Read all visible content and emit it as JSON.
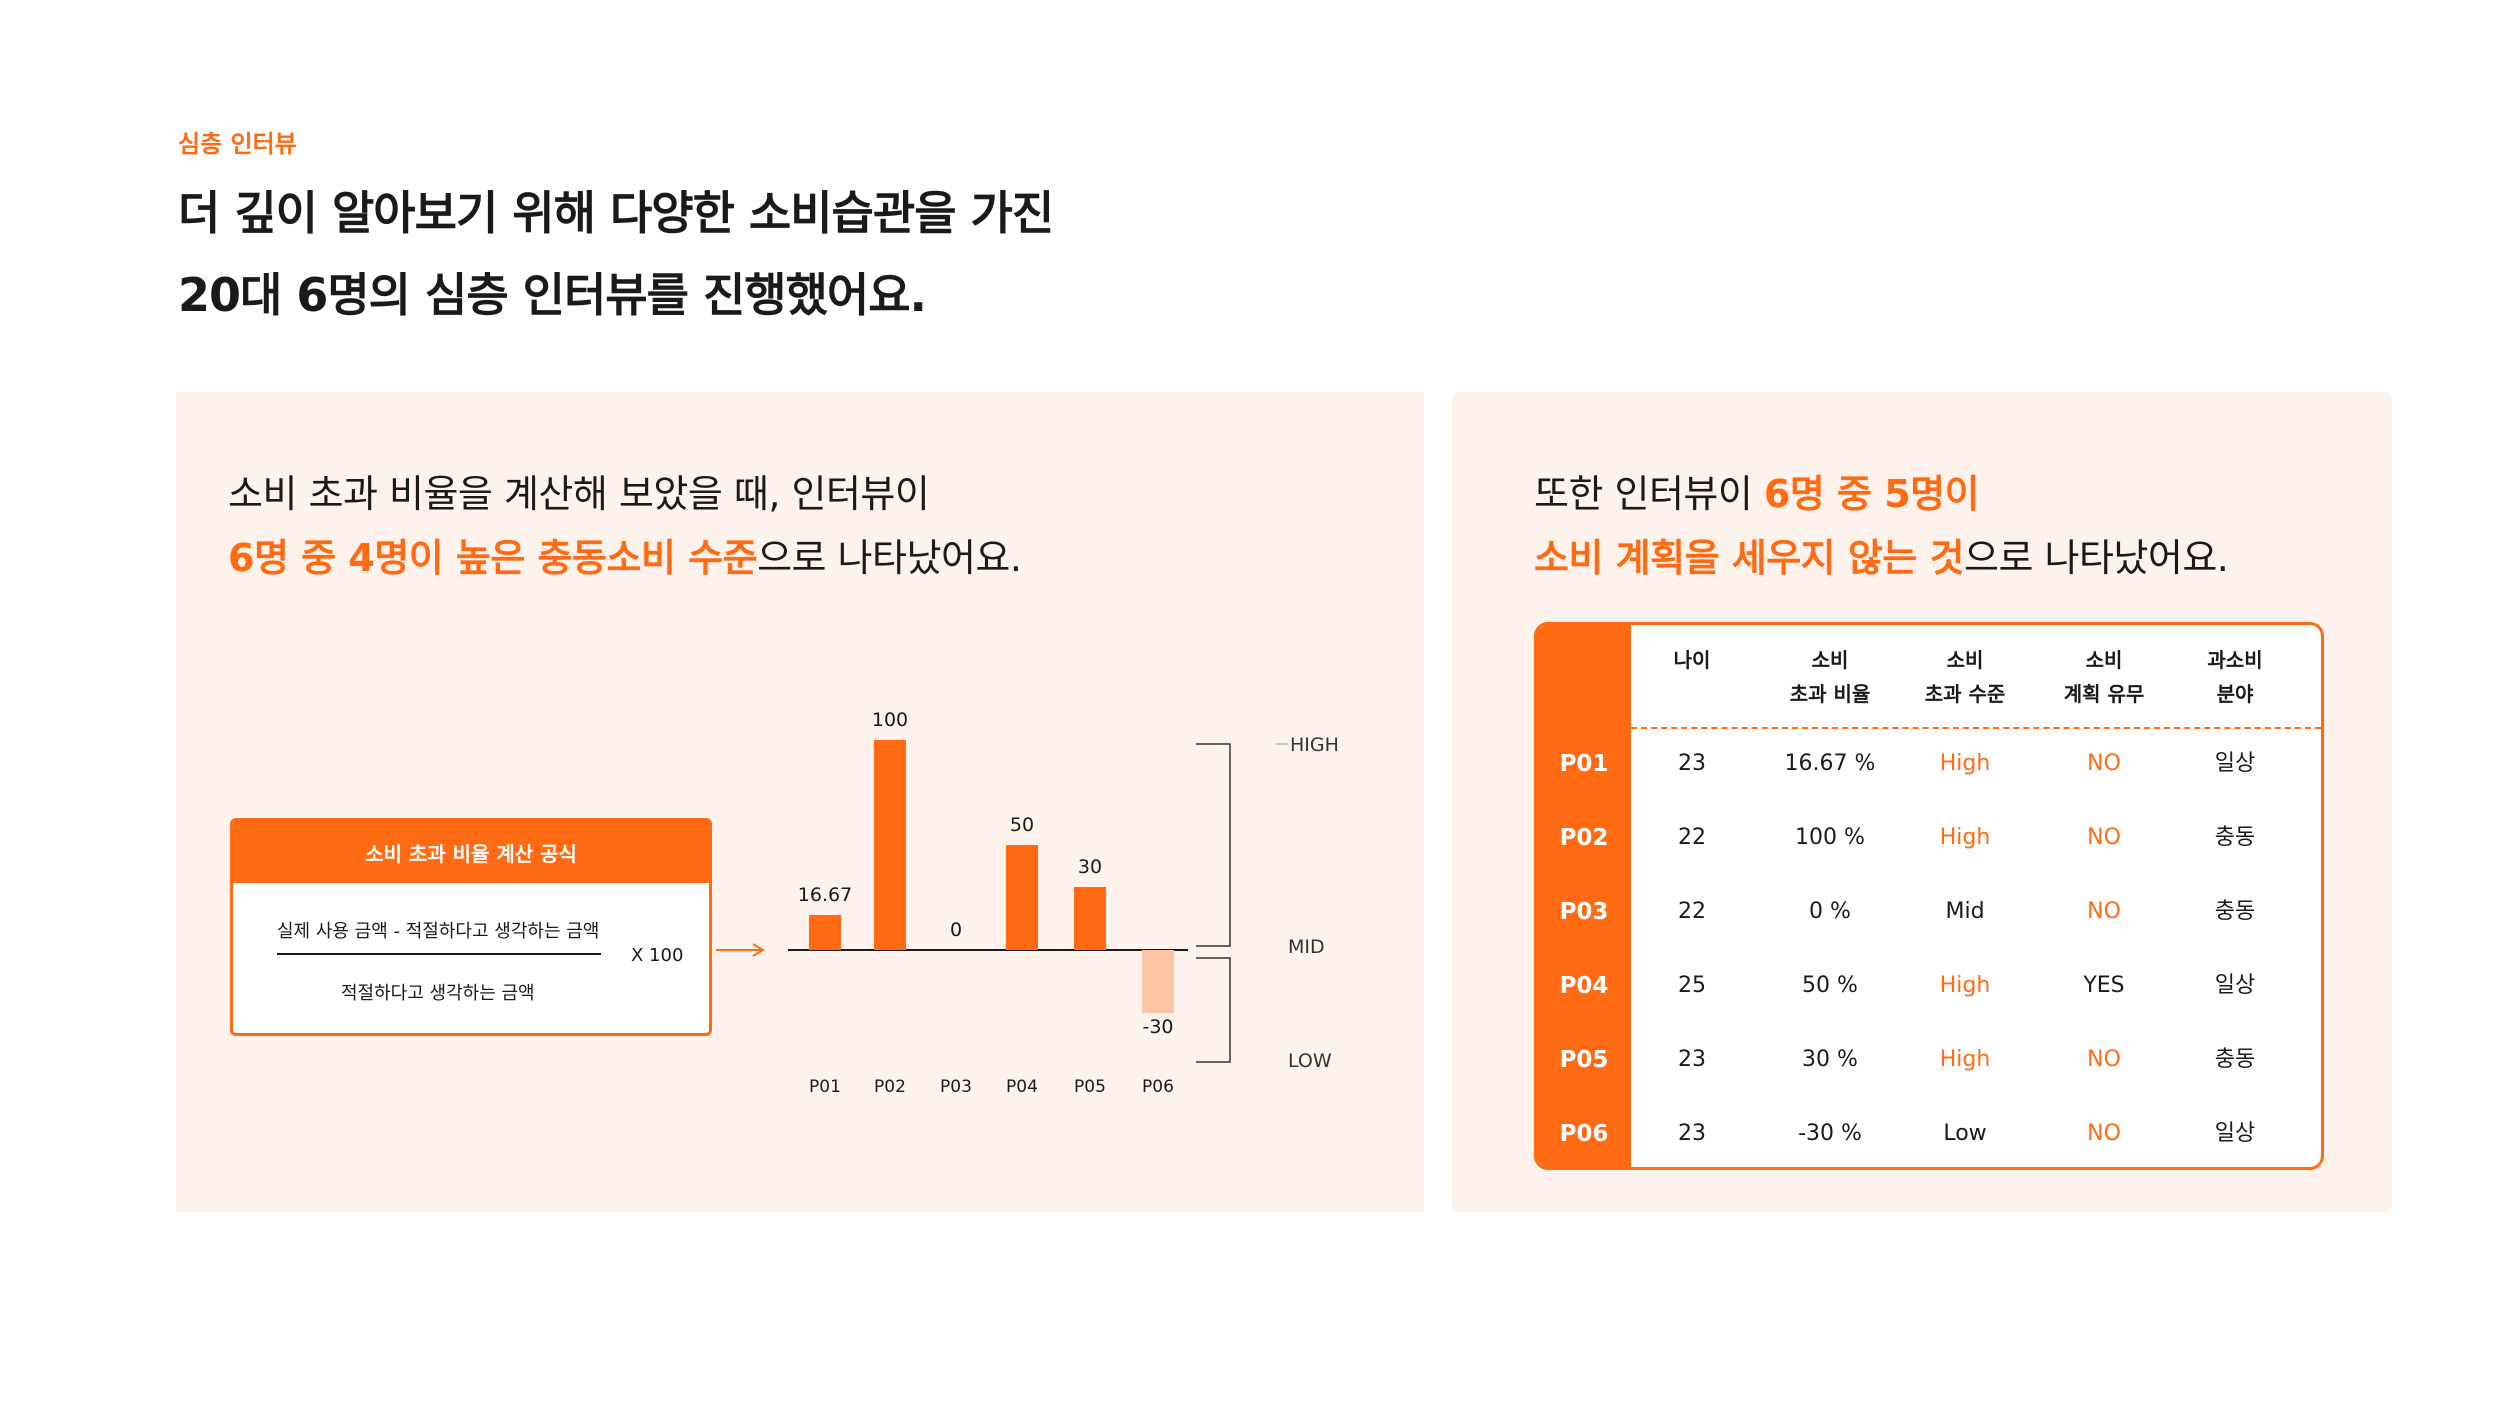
{
  "header": {
    "eyebrow": "심층 인터뷰",
    "headline_line1": "더 깊이 알아보기 위해 다양한 소비습관을 가진",
    "headline_line2": "20대 6명의 심층 인터뷰를 진행했어요."
  },
  "left_panel": {
    "text_line1": "소비 초과 비율을 계산해 보았을 때, 인터뷰이",
    "text_line2_highlight": "6명 중 4명이 높은 충동소비 수준",
    "text_line2_rest": "으로 나타났어요.",
    "formula": {
      "title": "소비 초과 비율 계산 공식",
      "numerator": "실제 사용 금액 - 적절하다고 생각하는 금액",
      "denominator": "적절하다고 생각하는 금액",
      "multiplier": "X 100"
    }
  },
  "chart_data": {
    "type": "bar",
    "title": "",
    "xlabel": "",
    "ylabel": "",
    "categories": [
      "P01",
      "P02",
      "P03",
      "P04",
      "P05",
      "P06"
    ],
    "values": [
      16.67,
      100,
      0,
      50,
      30,
      -30
    ],
    "value_labels": [
      "16.67",
      "100",
      "0",
      "50",
      "30",
      "-30"
    ],
    "ylim": [
      -50,
      110
    ],
    "levels": [
      "HIGH",
      "MID",
      "LOW"
    ],
    "bar_color": "#ff6a13",
    "negative_color": "#fcc6a5"
  },
  "right_panel": {
    "text_line1_prefix": "또한 인터뷰이 ",
    "text_line1_highlight": "6명 중 5명이",
    "text_line2_highlight": "소비 계획을 세우지 않는 것",
    "text_line2_rest": "으로 나타났어요.",
    "table": {
      "headers": [
        {
          "l1": "나이",
          "l2": ""
        },
        {
          "l1": "소비",
          "l2": "초과 비율"
        },
        {
          "l1": "소비",
          "l2": "초과 수준"
        },
        {
          "l1": "소비",
          "l2": "계획 유무"
        },
        {
          "l1": "과소비",
          "l2": "분야"
        }
      ],
      "rows": [
        {
          "id": "P01",
          "age": "23",
          "ratio": "16.67 %",
          "level": "High",
          "plan": "NO",
          "field": "일상"
        },
        {
          "id": "P02",
          "age": "22",
          "ratio": "100 %",
          "level": "High",
          "plan": "NO",
          "field": "충동"
        },
        {
          "id": "P03",
          "age": "22",
          "ratio": "0 %",
          "level": "Mid",
          "plan": "NO",
          "field": "충동"
        },
        {
          "id": "P04",
          "age": "25",
          "ratio": "50 %",
          "level": "High",
          "plan": "YES",
          "field": "일상"
        },
        {
          "id": "P05",
          "age": "23",
          "ratio": "30 %",
          "level": "High",
          "plan": "NO",
          "field": "충동"
        },
        {
          "id": "P06",
          "age": "23",
          "ratio": "-30 %",
          "level": "Low",
          "plan": "NO",
          "field": "일상"
        }
      ]
    }
  },
  "colors": {
    "accent": "#ff6a13",
    "panel_bg": "#fdf2ec"
  }
}
